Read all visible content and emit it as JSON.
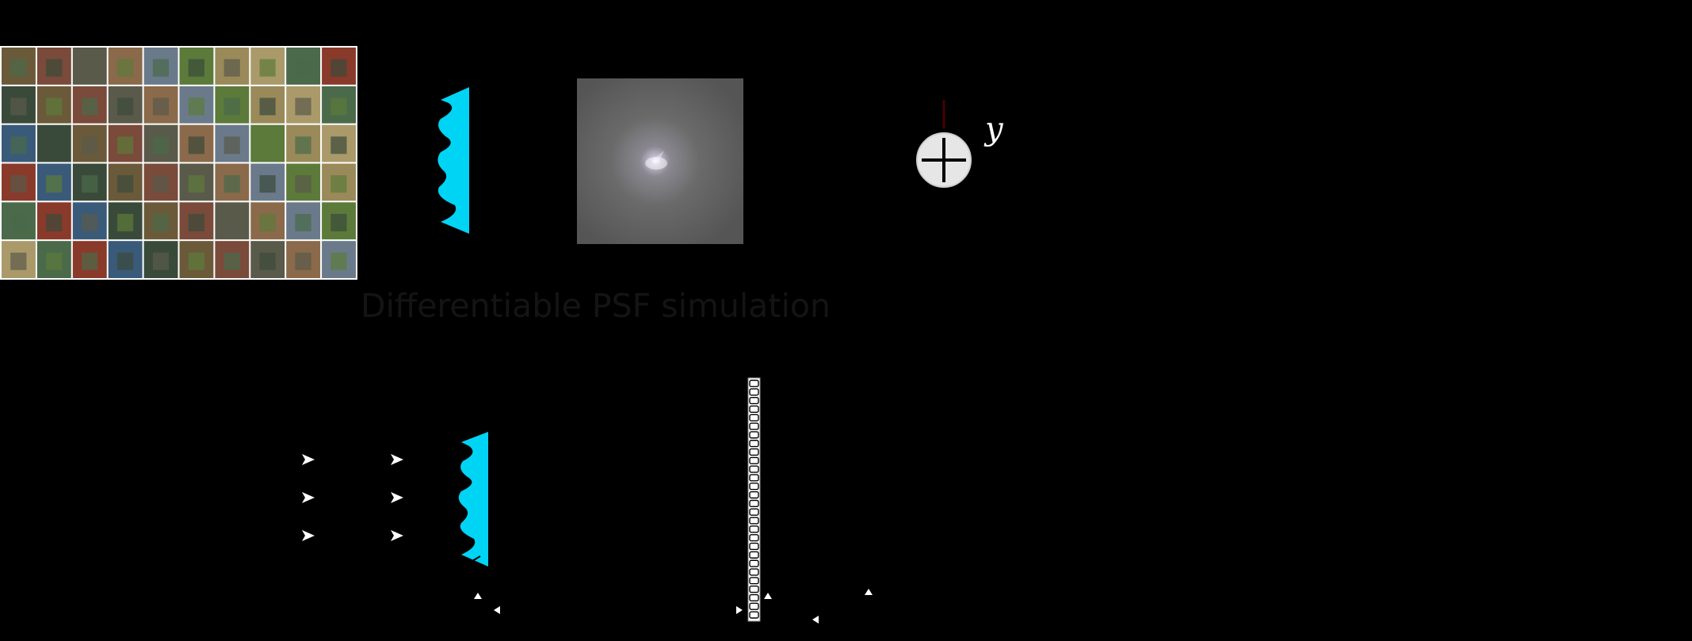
{
  "diagram": {
    "section_title": "Differentiable PSF simulation",
    "output_label": "y",
    "colors": {
      "background": "#000000",
      "lens": "#00d4f5",
      "psf_background": "#5f5f5f",
      "adder_fill": "#e6e6e6",
      "title_text": "#141414",
      "arrow_dark_red": "#4a0000"
    },
    "dataset_grid": {
      "rows": 6,
      "cols": 10
    },
    "icons": {
      "adder": "plus-circle-icon",
      "lens": "metalens-icon",
      "sensor": "pixel-array-icon",
      "rays": "arrowhead-icon"
    }
  }
}
